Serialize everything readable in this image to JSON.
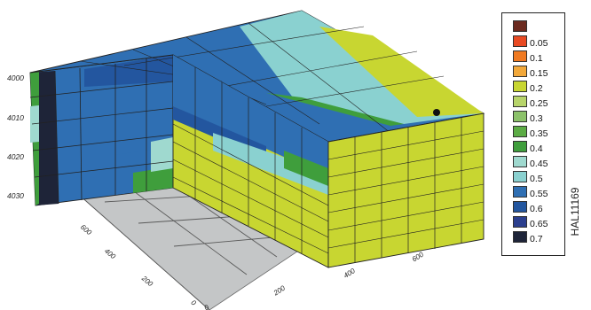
{
  "depth_ticks": [
    "4000",
    "4010",
    "4020",
    "4030"
  ],
  "floor_left_ticks": [
    "600",
    "400",
    "200",
    "0"
  ],
  "floor_right_ticks": [
    "0",
    "200",
    "400",
    "600"
  ],
  "legend": [
    {
      "label": "",
      "color": "#6b2a1f"
    },
    {
      "label": "0.05",
      "color": "#e84a23"
    },
    {
      "label": "0.1",
      "color": "#f07a22"
    },
    {
      "label": "0.15",
      "color": "#f2a83a"
    },
    {
      "label": "0.2",
      "color": "#c8d631"
    },
    {
      "label": "0.25",
      "color": "#b7d46a"
    },
    {
      "label": "0.3",
      "color": "#8cc26a"
    },
    {
      "label": "0.35",
      "color": "#5cac45"
    },
    {
      "label": "0.4",
      "color": "#3f9e3c"
    },
    {
      "label": "0.45",
      "color": "#9fd9cf"
    },
    {
      "label": "0.5",
      "color": "#8ad1d0"
    },
    {
      "label": "0.55",
      "color": "#2f6fb3"
    },
    {
      "label": "0.6",
      "color": "#23569f"
    },
    {
      "label": "0.65",
      "color": "#2b3f8e"
    },
    {
      "label": "0.7",
      "color": "#1e2438"
    }
  ],
  "figure_code": "HAL11169"
}
